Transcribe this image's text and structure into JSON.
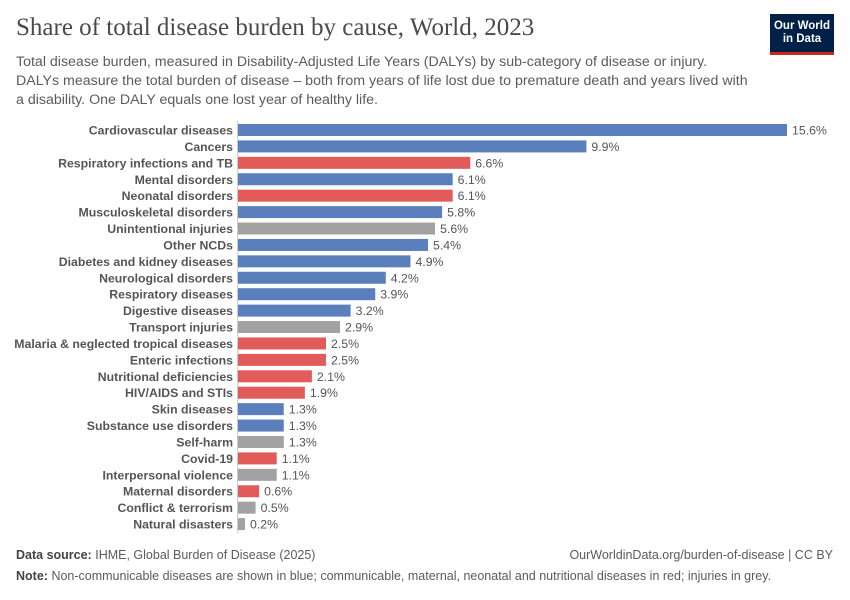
{
  "title": "Share of total disease burden by cause, World, 2023",
  "subtitle": "Total disease burden, measured in Disability-Adjusted Life Years (DALYs) by sub-category of disease or injury. DALYs measure the total burden of disease – both from years of life lost due to premature death and years lived with a disability. One DALY equals one lost year of healthy life.",
  "logo": {
    "line1": "Our World",
    "line2": "in Data"
  },
  "footer": {
    "source_label": "Data source:",
    "source": "IHME, Global Burden of Disease (2025)",
    "url": "OurWorldinData.org/burden-of-disease | CC BY",
    "note_label": "Note:",
    "note": "Non-communicable diseases are shown in blue; communicable, maternal, neonatal and nutritional diseases in red; injuries in grey."
  },
  "colors": {
    "ncd": "#5b7fbd",
    "communicable": "#e25b5b",
    "injury": "#a2a2a2"
  },
  "chart_data": {
    "type": "bar",
    "orientation": "horizontal",
    "unit": "%",
    "xlim": [
      0,
      15.6
    ],
    "grid": false,
    "categories": [
      "Cardiovascular diseases",
      "Cancers",
      "Respiratory infections and TB",
      "Mental disorders",
      "Neonatal disorders",
      "Musculoskeletal disorders",
      "Unintentional injuries",
      "Other NCDs",
      "Diabetes and kidney diseases",
      "Neurological disorders",
      "Respiratory diseases",
      "Digestive diseases",
      "Transport injuries",
      "Malaria & neglected tropical diseases",
      "Enteric infections",
      "Nutritional deficiencies",
      "HIV/AIDS and STIs",
      "Skin diseases",
      "Substance use disorders",
      "Self-harm",
      "Covid-19",
      "Interpersonal violence",
      "Maternal disorders",
      "Conflict & terrorism",
      "Natural disasters"
    ],
    "values": [
      15.6,
      9.9,
      6.6,
      6.1,
      6.1,
      5.8,
      5.6,
      5.4,
      4.9,
      4.2,
      3.9,
      3.2,
      2.9,
      2.5,
      2.5,
      2.1,
      1.9,
      1.3,
      1.3,
      1.3,
      1.1,
      1.1,
      0.6,
      0.5,
      0.2
    ],
    "groups": [
      "ncd",
      "ncd",
      "communicable",
      "ncd",
      "communicable",
      "ncd",
      "injury",
      "ncd",
      "ncd",
      "ncd",
      "ncd",
      "ncd",
      "injury",
      "communicable",
      "communicable",
      "communicable",
      "communicable",
      "ncd",
      "ncd",
      "injury",
      "communicable",
      "injury",
      "communicable",
      "injury",
      "injury"
    ]
  }
}
